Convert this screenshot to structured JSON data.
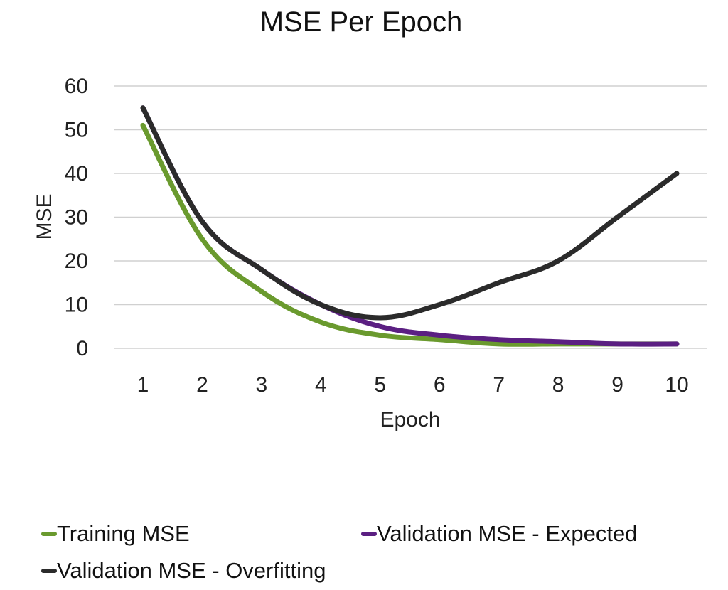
{
  "chart_data": {
    "type": "line",
    "title": "MSE Per Epoch",
    "xlabel": "Epoch",
    "ylabel": "MSE",
    "x": [
      1,
      2,
      3,
      4,
      5,
      6,
      7,
      8,
      9,
      10
    ],
    "ylim": [
      0,
      60
    ],
    "yticks": [
      0,
      10,
      20,
      30,
      40,
      50,
      60
    ],
    "grid": true,
    "legend_position": "bottom",
    "series": [
      {
        "name": "Training MSE",
        "color": "#6a9a2e",
        "values": [
          51,
          25,
          13,
          6,
          3,
          2,
          1,
          1,
          1,
          1
        ]
      },
      {
        "name": "Validation MSE - Expected",
        "color": "#5b1f82",
        "values": [
          55,
          29,
          18,
          10,
          5,
          3,
          2,
          1.5,
          1,
          1
        ]
      },
      {
        "name": "Validation MSE - Overfitting",
        "color": "#2b2b2b",
        "values": [
          55,
          29,
          18,
          10,
          7,
          10,
          15,
          20,
          30,
          40
        ]
      }
    ]
  }
}
